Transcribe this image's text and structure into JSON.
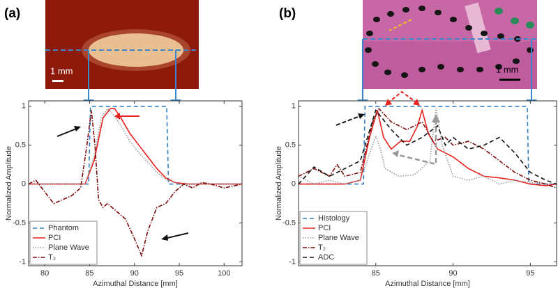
{
  "chart_data": [
    {
      "type": "line",
      "panel_label": "(a)",
      "scale_bar_label": "1 mm",
      "xlabel": "Azimuthal Distance [mm]",
      "ylabel": "Normalized Amplitude",
      "xlim": [
        78.2,
        102
      ],
      "xticks": [
        80,
        85,
        90,
        95,
        100
      ],
      "ylim": [
        -1.05,
        1.07
      ],
      "yticks": [
        -1,
        -0.5,
        0,
        0.5,
        1
      ],
      "legend": "lower left",
      "series": [
        {
          "name": "Phantom",
          "color": "#2f7fc1",
          "dash": "dashed",
          "x": [
            78.2,
            84.9,
            85.1,
            93.6,
            93.8,
            102
          ],
          "values": [
            0,
            0,
            1,
            1,
            0,
            0
          ]
        },
        {
          "name": "PCI",
          "color": "#e8211f",
          "dash": "solid",
          "x": [
            78.2,
            84.5,
            85.5,
            86.5,
            87.3,
            87.8,
            88.5,
            89.5,
            90.5,
            91.5,
            92.5,
            93.5,
            94.5,
            96,
            102
          ],
          "values": [
            0,
            0,
            0.3,
            0.85,
            0.97,
            0.97,
            0.85,
            0.65,
            0.5,
            0.35,
            0.2,
            0.08,
            0.02,
            0,
            0
          ]
        },
        {
          "name": "Plane Wave",
          "color": "#999999",
          "dash": "dotted",
          "x": [
            78.2,
            84.5,
            85.5,
            86.3,
            87,
            87.6,
            88.5,
            89.5,
            90.5,
            91.5,
            92.5,
            93.5,
            95,
            102
          ],
          "values": [
            0,
            0,
            0.35,
            0.85,
            0.97,
            0.9,
            0.75,
            0.55,
            0.4,
            0.28,
            0.15,
            0.06,
            0,
            0
          ]
        },
        {
          "name": "T₂",
          "color": "#7a0a0a",
          "dash": "dashdot",
          "x": [
            78.2,
            79,
            80,
            81,
            82,
            83,
            84,
            84.7,
            85.2,
            85.6,
            86,
            86.5,
            87,
            88,
            89,
            90,
            90.8,
            91.5,
            92.5,
            93.5,
            94.5,
            95.5,
            96.5,
            97.5,
            98.5,
            100,
            102
          ],
          "values": [
            0,
            0.05,
            -0.1,
            -0.25,
            -0.2,
            -0.15,
            -0.05,
            0.5,
            0.95,
            0.5,
            -0.2,
            -0.3,
            -0.25,
            -0.35,
            -0.45,
            -0.7,
            -0.92,
            -0.6,
            -0.3,
            -0.25,
            -0.1,
            0,
            -0.05,
            0.02,
            0,
            -0.05,
            0
          ]
        }
      ]
    },
    {
      "type": "line",
      "panel_label": "(b)",
      "scale_bar_label": "1 mm",
      "xlabel": "Azimuthal Distance [mm]",
      "ylabel": "Normalized Amplitude",
      "xlim": [
        80,
        96.7
      ],
      "xticks": [
        85,
        90,
        95
      ],
      "ylim": [
        -1.05,
        1.07
      ],
      "yticks": [
        -1,
        -0.5,
        0,
        0.5,
        1
      ],
      "legend": "lower left",
      "series": [
        {
          "name": "Histology",
          "color": "#2f7fc1",
          "dash": "dashed",
          "x": [
            80,
            84.2,
            84.3,
            94.8,
            94.9,
            96.7
          ],
          "values": [
            0,
            0,
            1,
            1,
            0,
            0
          ]
        },
        {
          "name": "PCI",
          "color": "#e8211f",
          "dash": "solid",
          "x": [
            80,
            83,
            84,
            84.6,
            85.1,
            85.5,
            86,
            86.6,
            87.2,
            87.7,
            88,
            88.4,
            89,
            90,
            91,
            92,
            93,
            94,
            95,
            96,
            96.7
          ],
          "values": [
            0,
            0,
            0.05,
            0.6,
            0.95,
            0.6,
            0.45,
            0.55,
            0.55,
            0.75,
            0.95,
            0.65,
            0.45,
            0.35,
            0.2,
            0.1,
            0.08,
            0.05,
            0,
            -0.02,
            0
          ]
        },
        {
          "name": "Plane Wave",
          "color": "#999999",
          "dash": "dotted",
          "x": [
            80,
            81,
            82,
            83,
            84,
            85,
            85.3,
            85.6,
            86.5,
            87.5,
            88.5,
            88.9,
            89.3,
            90,
            91,
            92,
            93,
            94,
            95,
            96.7
          ],
          "values": [
            0.1,
            0,
            0.05,
            0,
            0.05,
            0.62,
            0.45,
            0.2,
            0.1,
            0.12,
            0.3,
            0.98,
            0.5,
            0.1,
            0.05,
            0.1,
            0,
            0.05,
            0.02,
            0
          ]
        },
        {
          "name": "T₂",
          "color": "#7a0a0a",
          "dash": "dashdot",
          "x": [
            80,
            81,
            82,
            82.5,
            83,
            84,
            84.8,
            85.2,
            86,
            87,
            88,
            88.7,
            89.5,
            90,
            91,
            92,
            93,
            94,
            95,
            96,
            96.7
          ],
          "values": [
            0.1,
            0.2,
            0.1,
            0.25,
            0.1,
            0.15,
            0.8,
            0.97,
            0.8,
            0.7,
            0.8,
            0.55,
            0.6,
            0.5,
            0.55,
            0.45,
            0.3,
            0.15,
            0.05,
            0,
            -0.05
          ]
        },
        {
          "name": "ADC",
          "color": "#111111",
          "dash": "dashed",
          "x": [
            80,
            81,
            82,
            83,
            84,
            85,
            86,
            87,
            88,
            89,
            89.5,
            90,
            91,
            92,
            93,
            94,
            95,
            96,
            96.7
          ],
          "values": [
            0,
            0.22,
            0.1,
            0.2,
            0.3,
            0.95,
            0.7,
            0.5,
            0.6,
            0.75,
            0.5,
            0.6,
            0.45,
            0.5,
            0.6,
            0.4,
            0.15,
            0.05,
            0
          ]
        }
      ]
    }
  ]
}
